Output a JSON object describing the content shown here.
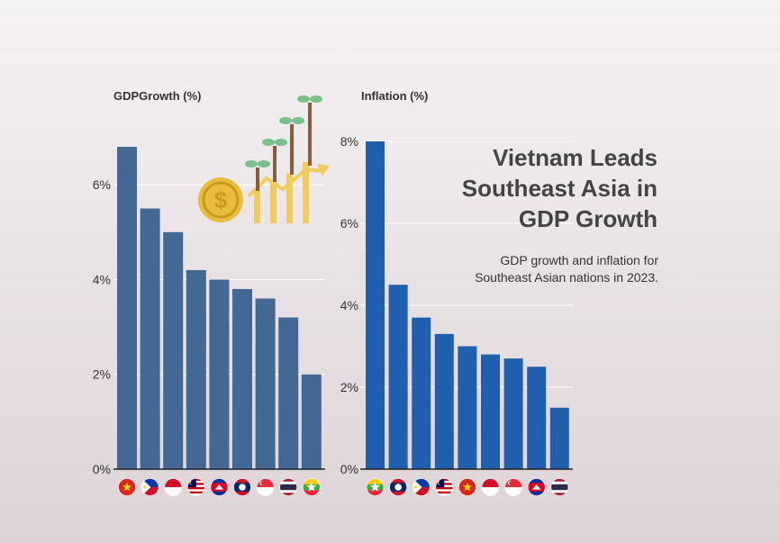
{
  "headline": "Vietnam Leads Southeast Asia in GDP Growth",
  "subtitle": "GDP growth and inflation for Southeast Asian nations in 2023.",
  "colors": {
    "gdp_bar": "#436894",
    "inflation_bar": "#1f5fae",
    "coin": "#e8bd3a",
    "stem": "#8a5a3c",
    "leaf": "#7ac08b"
  },
  "illustration": {
    "icon": "money-growth-icon"
  },
  "chart_data": [
    {
      "type": "bar",
      "title": "GDPGrowth (%)",
      "categories": [
        "Vietnam",
        "Philippines",
        "Indonesia",
        "Malaysia",
        "Cambodia",
        "Laos",
        "Singapore",
        "Thailand",
        "Myanmar"
      ],
      "values": [
        6.8,
        5.5,
        5.0,
        4.2,
        4.0,
        3.8,
        3.6,
        3.2,
        2.0
      ],
      "flags": [
        "vn",
        "ph",
        "id",
        "my",
        "kh",
        "la",
        "sg",
        "th",
        "mm"
      ],
      "ylim": [
        0,
        7.4
      ],
      "yticks": [
        0,
        2,
        4,
        6
      ],
      "ytick_labels": [
        "0%",
        "2%",
        "4%",
        "6%"
      ],
      "grid": true
    },
    {
      "type": "bar",
      "title": "Inflation (%)",
      "categories": [
        "Myanmar",
        "Laos",
        "Philippines",
        "Malaysia",
        "Vietnam",
        "Indonesia",
        "Singapore",
        "Cambodia",
        "Thailand"
      ],
      "values": [
        8.0,
        4.5,
        3.7,
        3.3,
        3.0,
        2.8,
        2.7,
        2.5,
        1.5
      ],
      "flags": [
        "mm",
        "la",
        "ph",
        "my",
        "vn",
        "id",
        "sg",
        "kh",
        "th"
      ],
      "ylim": [
        0,
        8
      ],
      "yticks": [
        0,
        2,
        4,
        6,
        8
      ],
      "ytick_labels": [
        "0%",
        "2%",
        "4%",
        "6%",
        "8%"
      ],
      "grid": true
    }
  ]
}
